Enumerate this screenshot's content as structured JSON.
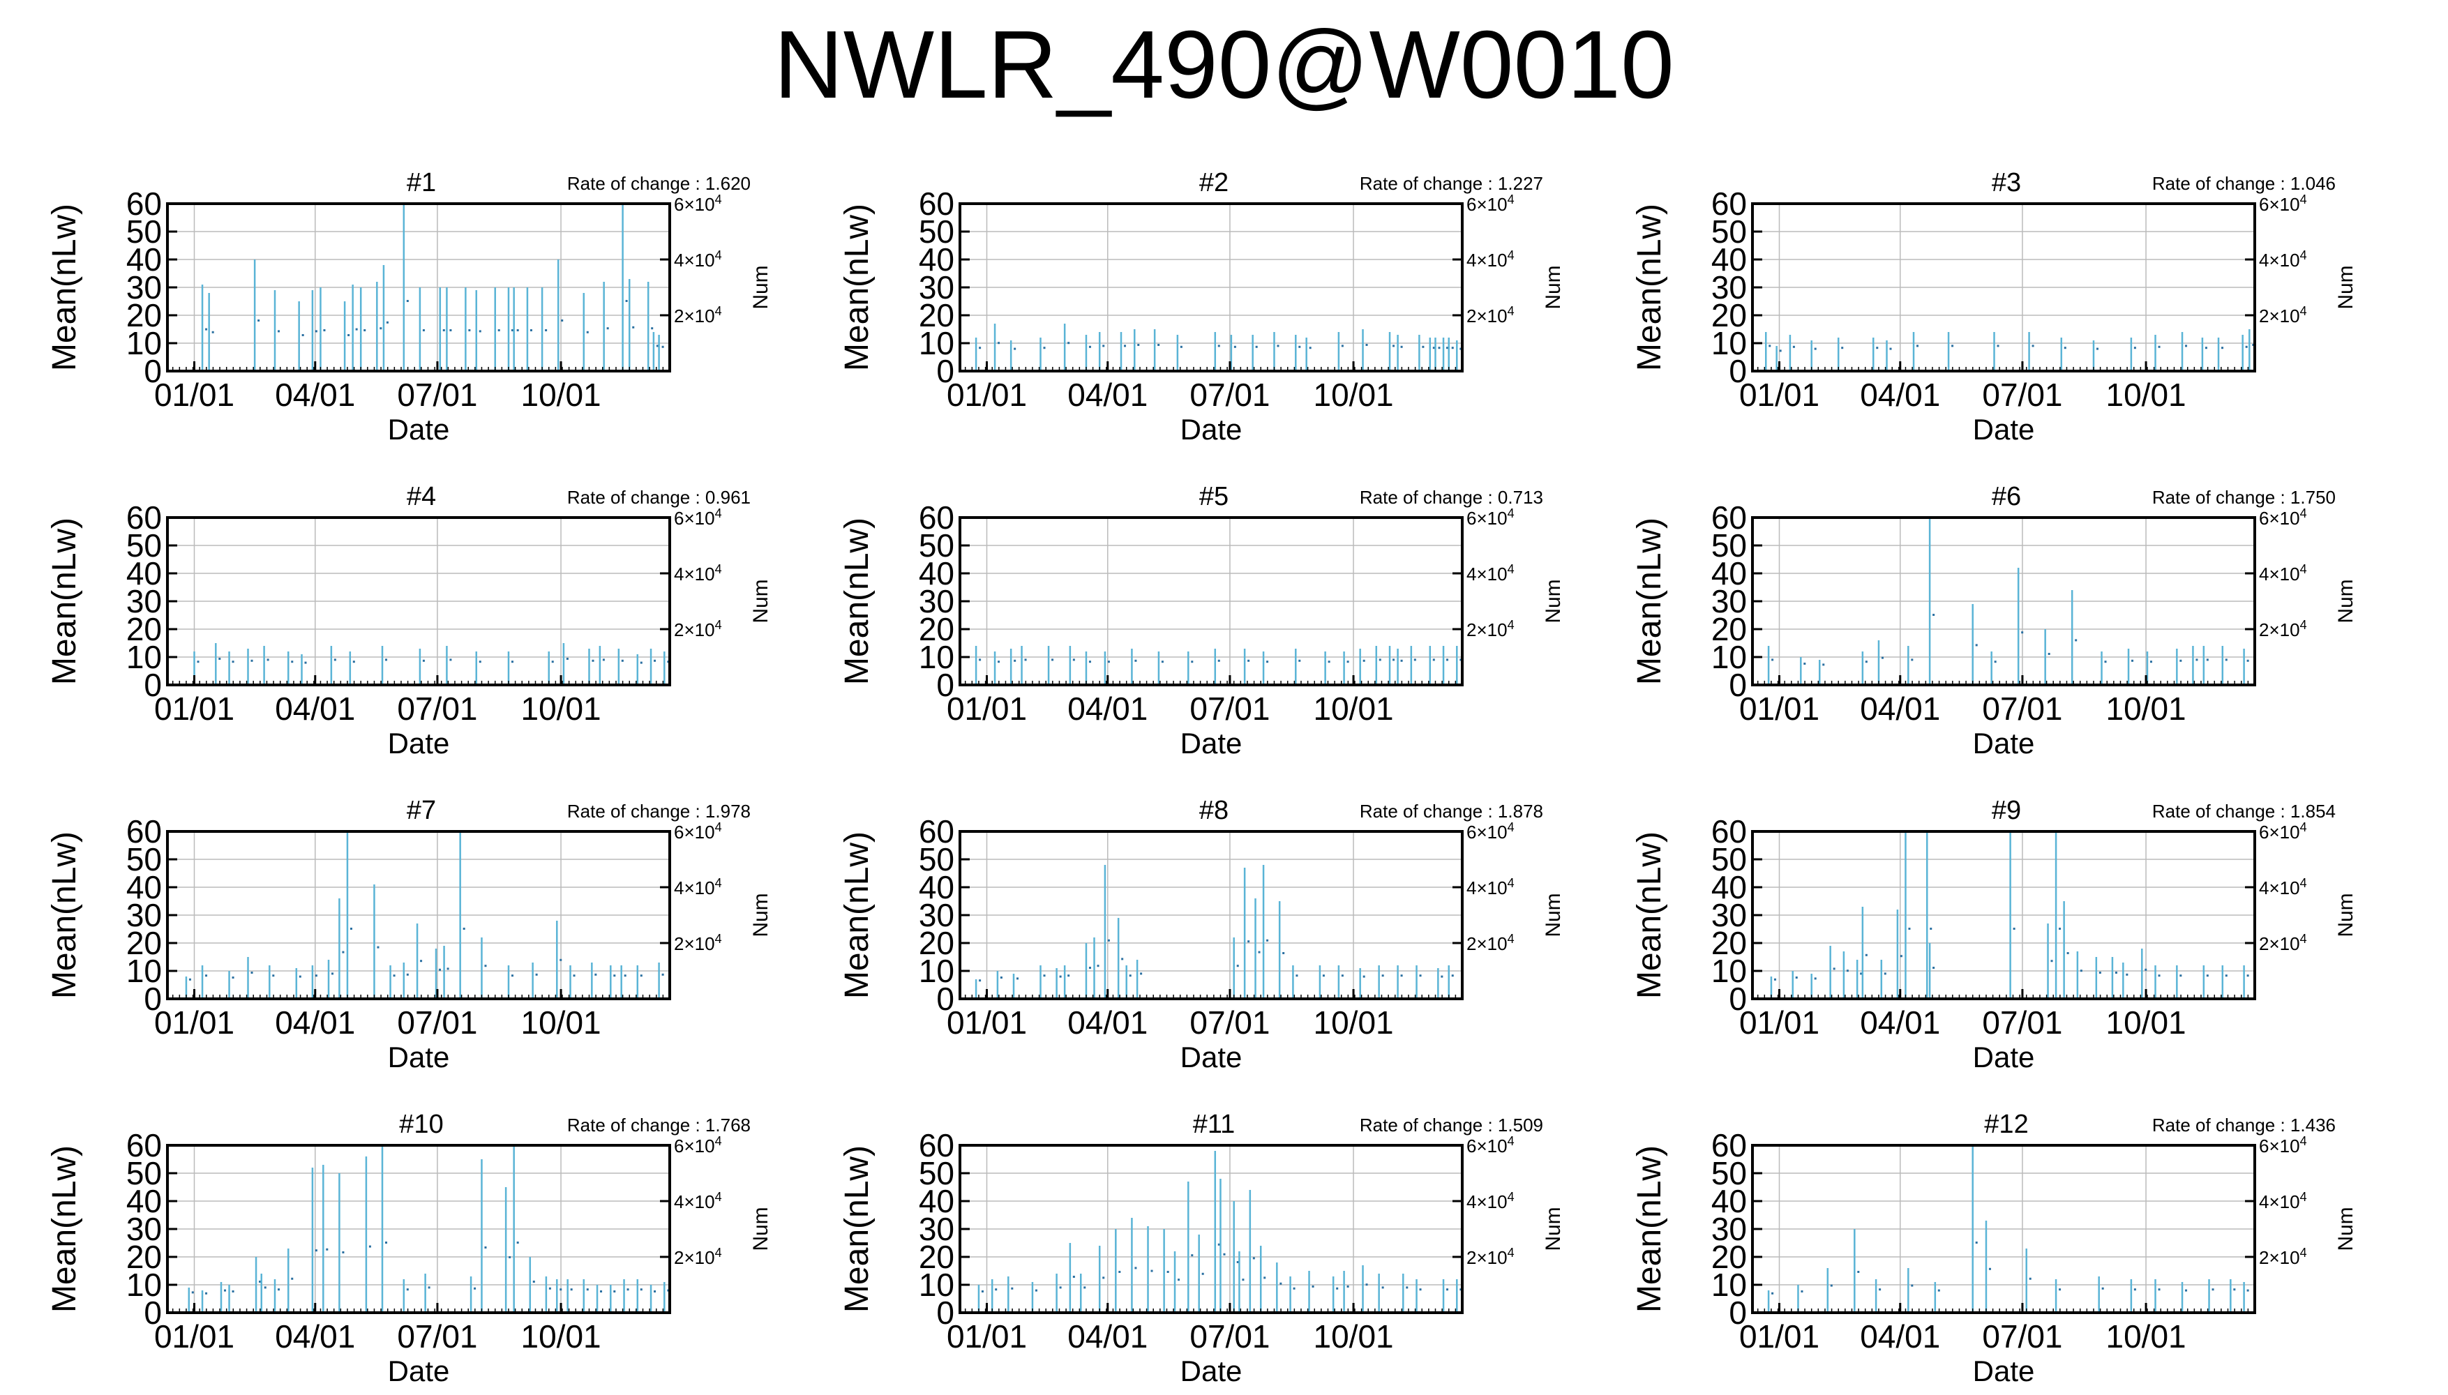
{
  "title": "NWLR_490@W0010",
  "chart_data": [
    {
      "type": "bar",
      "title": "#1",
      "rate_of_change": "1.620"
    },
    {
      "type": "bar",
      "title": "#2",
      "rate_of_change": "1.227"
    },
    {
      "type": "bar",
      "title": "#3",
      "rate_of_change": "1.046"
    },
    {
      "type": "bar",
      "title": "#4",
      "rate_of_change": "0.961"
    },
    {
      "type": "bar",
      "title": "#5",
      "rate_of_change": "0.713"
    },
    {
      "type": "bar",
      "title": "#6",
      "rate_of_change": "1.750"
    },
    {
      "type": "bar",
      "title": "#7",
      "rate_of_change": "1.978"
    },
    {
      "type": "bar",
      "title": "#8",
      "rate_of_change": "1.878"
    },
    {
      "type": "bar",
      "title": "#9",
      "rate_of_change": "1.854"
    },
    {
      "type": "bar",
      "title": "#10",
      "rate_of_change": "1.768"
    },
    {
      "type": "bar",
      "title": "#11",
      "rate_of_change": "1.509"
    },
    {
      "type": "bar",
      "title": "#12",
      "rate_of_change": "1.436"
    }
  ],
  "common": {
    "rate_label": "Rate of change : ",
    "xlabel": "Date",
    "ylabel": "Mean(nLw)",
    "y2label": "Num",
    "xticks": [
      "01/01",
      "04/01",
      "07/01",
      "10/01"
    ],
    "xtick_days": [
      0,
      90,
      181,
      273
    ],
    "xlim_days": [
      -20,
      354
    ],
    "yticks": [
      0,
      10,
      20,
      30,
      40,
      50,
      60
    ],
    "ylim": [
      0,
      60
    ],
    "y2ticks": [
      {
        "m": "2",
        "e": "4",
        "v": 20000
      },
      {
        "m": "4",
        "e": "4",
        "v": 40000
      },
      {
        "m": "6",
        "e": "4",
        "v": 60000
      }
    ],
    "y2lim": [
      0,
      60000
    ],
    "grid": true,
    "series_color": "#5ab4d6",
    "dot_color": "#2a6fa0",
    "grid_color": "#bbbbbb"
  },
  "spikes": [
    [
      [
        6,
        31
      ],
      [
        11,
        28
      ],
      [
        45,
        40
      ],
      [
        60,
        29
      ],
      [
        78,
        25
      ],
      [
        88,
        29
      ],
      [
        94,
        30
      ],
      [
        112,
        25
      ],
      [
        118,
        31
      ],
      [
        124,
        30
      ],
      [
        136,
        32
      ],
      [
        141,
        38
      ],
      [
        156,
        60
      ],
      [
        168,
        30
      ],
      [
        183,
        30
      ],
      [
        188,
        30
      ],
      [
        202,
        30
      ],
      [
        210,
        29
      ],
      [
        224,
        30
      ],
      [
        234,
        30
      ],
      [
        238,
        30
      ],
      [
        248,
        30
      ],
      [
        259,
        30
      ],
      [
        271,
        40
      ],
      [
        290,
        28
      ],
      [
        305,
        32
      ],
      [
        319,
        60
      ],
      [
        324,
        33
      ],
      [
        338,
        32
      ],
      [
        342,
        14
      ],
      [
        346,
        13
      ]
    ],
    [
      [
        -8,
        12
      ],
      [
        6,
        17
      ],
      [
        18,
        11
      ],
      [
        40,
        12
      ],
      [
        58,
        17
      ],
      [
        74,
        13
      ],
      [
        84,
        14
      ],
      [
        100,
        14
      ],
      [
        110,
        15
      ],
      [
        125,
        15
      ],
      [
        142,
        13
      ],
      [
        170,
        14
      ],
      [
        182,
        13
      ],
      [
        198,
        13
      ],
      [
        214,
        14
      ],
      [
        230,
        13
      ],
      [
        238,
        12
      ],
      [
        262,
        14
      ],
      [
        280,
        15
      ],
      [
        300,
        14
      ],
      [
        306,
        13
      ],
      [
        322,
        13
      ],
      [
        330,
        12
      ],
      [
        334,
        12
      ],
      [
        340,
        12
      ],
      [
        344,
        12
      ],
      [
        350,
        11
      ]
    ],
    [
      [
        -10,
        14
      ],
      [
        -2,
        9
      ],
      [
        8,
        13
      ],
      [
        24,
        11
      ],
      [
        44,
        12
      ],
      [
        70,
        12
      ],
      [
        80,
        11
      ],
      [
        100,
        14
      ],
      [
        126,
        14
      ],
      [
        160,
        14
      ],
      [
        186,
        14
      ],
      [
        210,
        12
      ],
      [
        234,
        11
      ],
      [
        262,
        12
      ],
      [
        280,
        13
      ],
      [
        300,
        14
      ],
      [
        315,
        12
      ],
      [
        327,
        12
      ],
      [
        345,
        13
      ],
      [
        350,
        15
      ]
    ],
    [
      [
        0,
        12
      ],
      [
        16,
        15
      ],
      [
        26,
        12
      ],
      [
        40,
        13
      ],
      [
        52,
        14
      ],
      [
        70,
        12
      ],
      [
        80,
        11
      ],
      [
        102,
        14
      ],
      [
        116,
        12
      ],
      [
        140,
        14
      ],
      [
        168,
        13
      ],
      [
        188,
        14
      ],
      [
        210,
        12
      ],
      [
        234,
        12
      ],
      [
        264,
        12
      ],
      [
        275,
        15
      ],
      [
        294,
        13
      ],
      [
        302,
        14
      ],
      [
        316,
        13
      ],
      [
        330,
        11
      ],
      [
        340,
        13
      ],
      [
        350,
        12
      ]
    ],
    [
      [
        -8,
        14
      ],
      [
        6,
        12
      ],
      [
        18,
        13
      ],
      [
        26,
        14
      ],
      [
        46,
        14
      ],
      [
        62,
        14
      ],
      [
        74,
        12
      ],
      [
        88,
        12
      ],
      [
        108,
        13
      ],
      [
        128,
        12
      ],
      [
        150,
        12
      ],
      [
        170,
        13
      ],
      [
        192,
        13
      ],
      [
        206,
        12
      ],
      [
        230,
        13
      ],
      [
        252,
        12
      ],
      [
        266,
        12
      ],
      [
        278,
        13
      ],
      [
        290,
        14
      ],
      [
        300,
        14
      ],
      [
        306,
        13
      ],
      [
        316,
        14
      ],
      [
        330,
        14
      ],
      [
        340,
        14
      ],
      [
        350,
        14
      ]
    ],
    [
      [
        -8,
        14
      ],
      [
        16,
        10
      ],
      [
        30,
        9
      ],
      [
        62,
        12
      ],
      [
        74,
        16
      ],
      [
        96,
        14
      ],
      [
        112,
        60
      ],
      [
        144,
        29
      ],
      [
        158,
        12
      ],
      [
        178,
        42
      ],
      [
        198,
        20
      ],
      [
        218,
        34
      ],
      [
        240,
        12
      ],
      [
        260,
        13
      ],
      [
        274,
        12
      ],
      [
        296,
        13
      ],
      [
        308,
        14
      ],
      [
        316,
        14
      ],
      [
        330,
        14
      ],
      [
        346,
        13
      ]
    ],
    [
      [
        -6,
        8
      ],
      [
        6,
        12
      ],
      [
        26,
        10
      ],
      [
        40,
        15
      ],
      [
        56,
        12
      ],
      [
        76,
        11
      ],
      [
        88,
        12
      ],
      [
        100,
        14
      ],
      [
        108,
        36
      ],
      [
        114,
        60
      ],
      [
        134,
        41
      ],
      [
        146,
        12
      ],
      [
        156,
        13
      ],
      [
        166,
        27
      ],
      [
        180,
        18
      ],
      [
        186,
        19
      ],
      [
        198,
        60
      ],
      [
        214,
        22
      ],
      [
        234,
        12
      ],
      [
        252,
        13
      ],
      [
        270,
        28
      ],
      [
        280,
        12
      ],
      [
        296,
        13
      ],
      [
        310,
        12
      ],
      [
        318,
        12
      ],
      [
        330,
        12
      ],
      [
        346,
        13
      ]
    ],
    [
      [
        -8,
        7
      ],
      [
        8,
        10
      ],
      [
        20,
        9
      ],
      [
        40,
        12
      ],
      [
        52,
        11
      ],
      [
        58,
        12
      ],
      [
        74,
        20
      ],
      [
        80,
        22
      ],
      [
        88,
        48
      ],
      [
        98,
        29
      ],
      [
        104,
        12
      ],
      [
        112,
        14
      ],
      [
        184,
        22
      ],
      [
        192,
        47
      ],
      [
        200,
        36
      ],
      [
        206,
        48
      ],
      [
        218,
        35
      ],
      [
        228,
        12
      ],
      [
        248,
        12
      ],
      [
        262,
        12
      ],
      [
        278,
        11
      ],
      [
        292,
        12
      ],
      [
        306,
        12
      ],
      [
        320,
        12
      ],
      [
        336,
        11
      ],
      [
        344,
        12
      ]
    ],
    [
      [
        -6,
        8
      ],
      [
        10,
        10
      ],
      [
        24,
        9
      ],
      [
        38,
        19
      ],
      [
        48,
        17
      ],
      [
        58,
        14
      ],
      [
        62,
        33
      ],
      [
        76,
        14
      ],
      [
        88,
        32
      ],
      [
        94,
        60
      ],
      [
        110,
        60
      ],
      [
        112,
        20
      ],
      [
        172,
        60
      ],
      [
        200,
        27
      ],
      [
        206,
        60
      ],
      [
        212,
        35
      ],
      [
        222,
        17
      ],
      [
        236,
        15
      ],
      [
        248,
        15
      ],
      [
        256,
        13
      ],
      [
        270,
        18
      ],
      [
        280,
        12
      ],
      [
        296,
        12
      ],
      [
        316,
        12
      ],
      [
        330,
        12
      ],
      [
        346,
        12
      ]
    ],
    [
      [
        -4,
        9
      ],
      [
        6,
        8
      ],
      [
        20,
        11
      ],
      [
        26,
        10
      ],
      [
        46,
        20
      ],
      [
        50,
        14
      ],
      [
        60,
        12
      ],
      [
        70,
        23
      ],
      [
        88,
        52
      ],
      [
        96,
        53
      ],
      [
        108,
        50
      ],
      [
        128,
        56
      ],
      [
        140,
        60
      ],
      [
        156,
        12
      ],
      [
        172,
        14
      ],
      [
        206,
        13
      ],
      [
        214,
        55
      ],
      [
        232,
        45
      ],
      [
        238,
        60
      ],
      [
        250,
        20
      ],
      [
        262,
        13
      ],
      [
        270,
        12
      ],
      [
        278,
        12
      ],
      [
        290,
        12
      ],
      [
        300,
        10
      ],
      [
        310,
        10
      ],
      [
        320,
        12
      ],
      [
        330,
        12
      ],
      [
        340,
        10
      ],
      [
        350,
        11
      ]
    ],
    [
      [
        -6,
        10
      ],
      [
        4,
        12
      ],
      [
        16,
        13
      ],
      [
        34,
        11
      ],
      [
        52,
        14
      ],
      [
        62,
        25
      ],
      [
        70,
        14
      ],
      [
        84,
        24
      ],
      [
        96,
        30
      ],
      [
        108,
        34
      ],
      [
        120,
        31
      ],
      [
        132,
        30
      ],
      [
        140,
        22
      ],
      [
        150,
        47
      ],
      [
        158,
        28
      ],
      [
        170,
        58
      ],
      [
        174,
        48
      ],
      [
        184,
        40
      ],
      [
        188,
        22
      ],
      [
        196,
        44
      ],
      [
        204,
        24
      ],
      [
        216,
        18
      ],
      [
        226,
        13
      ],
      [
        240,
        15
      ],
      [
        258,
        13
      ],
      [
        266,
        15
      ],
      [
        280,
        17
      ],
      [
        292,
        14
      ],
      [
        310,
        14
      ],
      [
        320,
        12
      ],
      [
        340,
        12
      ],
      [
        350,
        12
      ]
    ],
    [
      [
        -8,
        8
      ],
      [
        14,
        10
      ],
      [
        36,
        16
      ],
      [
        56,
        30
      ],
      [
        72,
        12
      ],
      [
        96,
        16
      ],
      [
        116,
        11
      ],
      [
        144,
        60
      ],
      [
        154,
        33
      ],
      [
        184,
        23
      ],
      [
        206,
        12
      ],
      [
        238,
        13
      ],
      [
        262,
        12
      ],
      [
        280,
        12
      ],
      [
        300,
        11
      ],
      [
        320,
        12
      ],
      [
        336,
        12
      ],
      [
        346,
        11
      ]
    ]
  ]
}
